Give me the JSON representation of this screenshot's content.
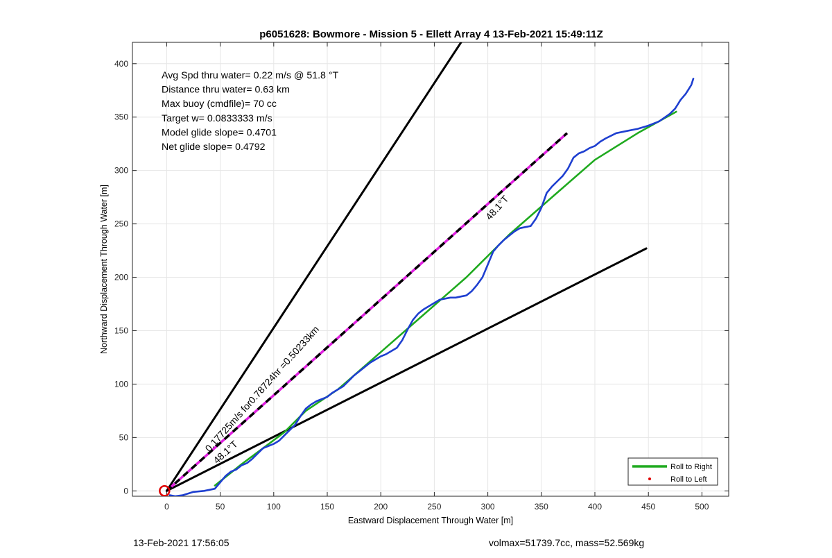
{
  "chart_data": {
    "type": "line",
    "title": "p6051628: Bowmore - Mission 5 - Ellett Array 4 13-Feb-2021 15:49:11Z",
    "xlabel": "Eastward Displacement Through Water [m]",
    "ylabel": "Northward Displacement Through Water [m]",
    "xlim": [
      -32,
      525
    ],
    "ylim": [
      -5,
      420
    ],
    "xticks": [
      0,
      50,
      100,
      150,
      200,
      250,
      300,
      350,
      400,
      450,
      500
    ],
    "yticks": [
      0,
      50,
      100,
      150,
      200,
      250,
      300,
      350,
      400
    ],
    "grid": true,
    "info_text": [
      "Avg Spd thru water=  0.22 m/s @  51.8 °T",
      "Distance thru water=  0.63 km",
      "Max buoy (cmdfile)= 70 cc",
      "Target w= 0.0833333 m/s",
      "Model glide slope= 0.4701",
      "Net glide slope= 0.4792"
    ],
    "annotations": [
      {
        "text": "0.17725m/s for0.78724hr =0.50233km",
        "x": 40,
        "y": 36,
        "angle_deg": 48.1
      },
      {
        "text": "48.1°T",
        "x": 47,
        "y": 25,
        "angle_deg": 41.9
      },
      {
        "text": "48.1°T",
        "x": 302,
        "y": 253,
        "angle_deg": 48.1
      }
    ],
    "legend": {
      "position": "bottom-right",
      "entries": [
        {
          "label": "Roll to Right",
          "color": "#1faa1f",
          "style": "line"
        },
        {
          "label": "Roll to Left",
          "color": "#e00000",
          "style": "dot"
        }
      ]
    },
    "series": [
      {
        "role": "bound-upper",
        "color": "#000000",
        "dashed": false,
        "x": [
          0,
          275
        ],
        "y": [
          0,
          420
        ]
      },
      {
        "role": "bound-lower",
        "color": "#000000",
        "dashed": false,
        "x": [
          0,
          448
        ],
        "y": [
          0,
          227
        ]
      },
      {
        "role": "heading",
        "color": "#e020e0",
        "dash_color": "#000000",
        "dashed": true,
        "x": [
          0,
          374
        ],
        "y": [
          0,
          335
        ]
      },
      {
        "role": "roll-right",
        "color": "#1faa1f",
        "dashed": false,
        "x": [
          45,
          70,
          90,
          110,
          130,
          160,
          200,
          240,
          280,
          320,
          360,
          400,
          440,
          476
        ],
        "y": [
          5,
          25,
          40,
          55,
          75,
          95,
          130,
          165,
          200,
          240,
          275,
          310,
          335,
          355
        ]
      },
      {
        "role": "track",
        "color": "#1e3fd0",
        "dashed": false,
        "x": [
          3,
          8,
          15,
          25,
          35,
          45,
          50,
          55,
          60,
          65,
          70,
          75,
          80,
          85,
          90,
          95,
          100,
          105,
          110,
          115,
          120,
          125,
          130,
          135,
          140,
          145,
          150,
          155,
          160,
          165,
          170,
          175,
          180,
          185,
          190,
          195,
          200,
          205,
          210,
          215,
          220,
          225,
          230,
          235,
          240,
          245,
          250,
          255,
          260,
          265,
          270,
          275,
          280,
          285,
          290,
          295,
          300,
          305,
          310,
          315,
          320,
          325,
          330,
          335,
          340,
          345,
          350,
          355,
          360,
          365,
          370,
          375,
          380,
          385,
          390,
          395,
          400,
          405,
          410,
          420,
          430,
          440,
          450,
          460,
          470,
          475,
          480,
          485,
          490,
          492
        ],
        "y": [
          -4,
          -5,
          -4,
          -1,
          0,
          2,
          8,
          14,
          18,
          20,
          24,
          26,
          30,
          35,
          40,
          42,
          44,
          47,
          52,
          57,
          62,
          70,
          77,
          81,
          84,
          86,
          88,
          92,
          95,
          98,
          103,
          108,
          112,
          116,
          120,
          123,
          126,
          128,
          131,
          134,
          141,
          151,
          160,
          166,
          170,
          173,
          176,
          179,
          180,
          181,
          181,
          182,
          183,
          187,
          193,
          200,
          212,
          224,
          230,
          235,
          239,
          243,
          246,
          247,
          248,
          255,
          265,
          279,
          285,
          290,
          295,
          302,
          312,
          316,
          318,
          321,
          323,
          327,
          330,
          335,
          337,
          339,
          342,
          346,
          353,
          358,
          366,
          372,
          380,
          386
        ]
      },
      {
        "role": "start-marker",
        "color": "#e00000",
        "dashed": false,
        "x": [
          -2
        ],
        "y": [
          0
        ]
      }
    ]
  },
  "footer": {
    "left": "13-Feb-2021 17:56:05",
    "right": "volmax=51739.7cc, mass=52.569kg"
  }
}
